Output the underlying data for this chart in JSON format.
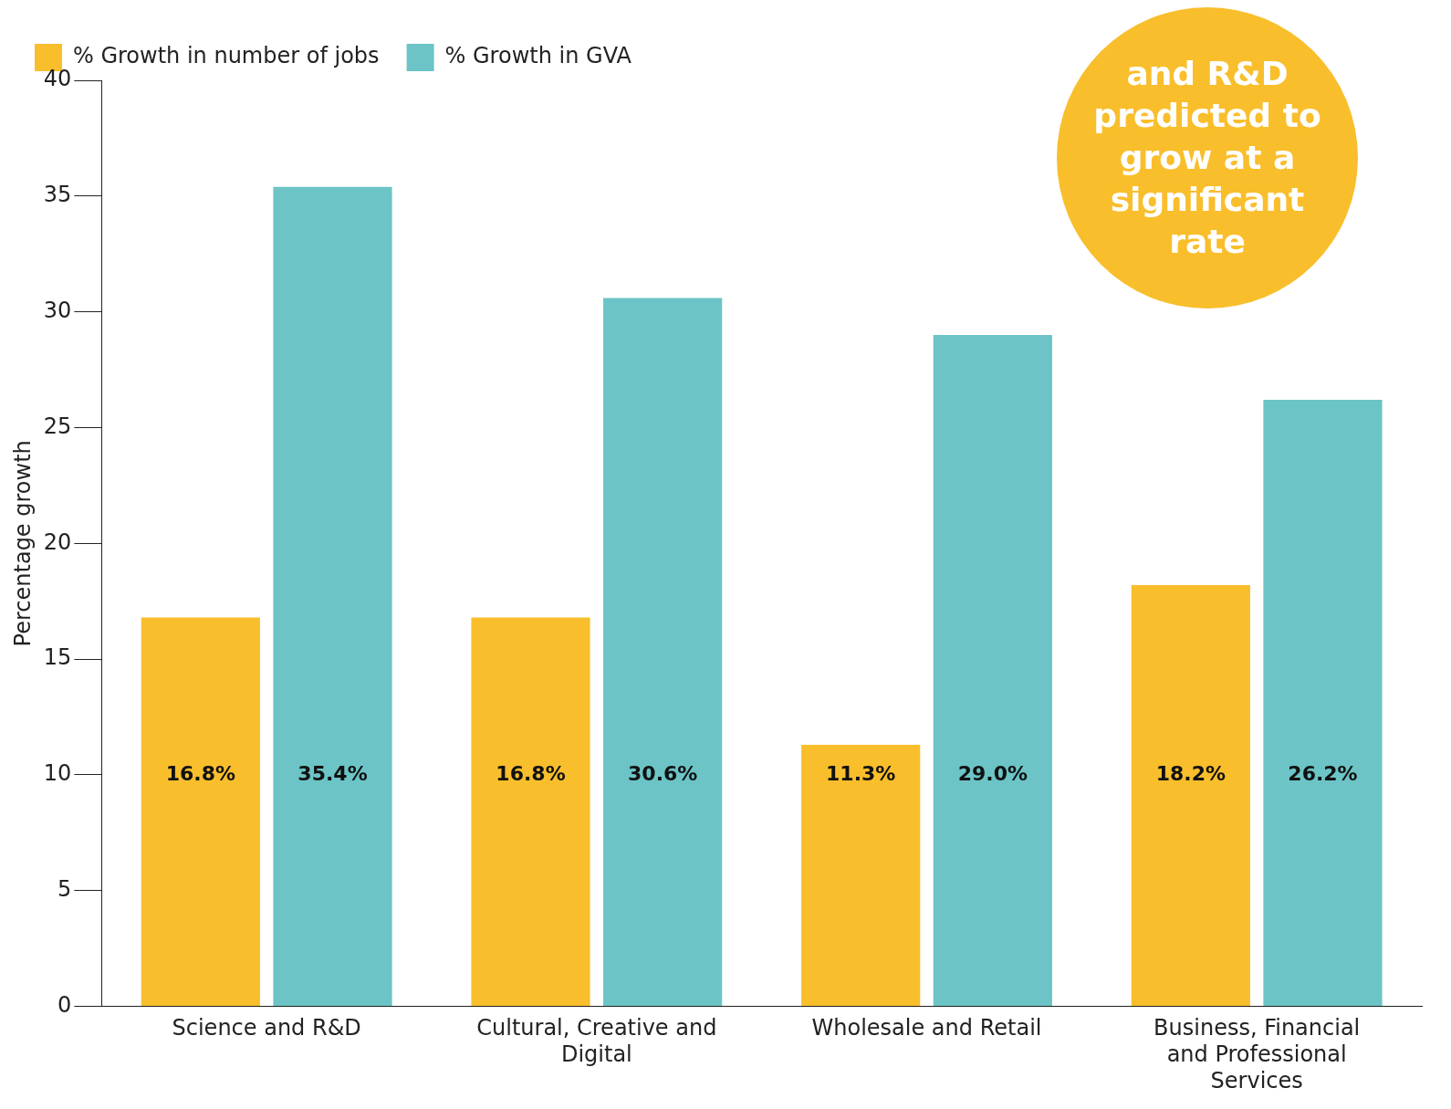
{
  "chart_data": {
    "type": "bar",
    "ylabel": "Percentage growth",
    "categories": [
      "Science and R&D",
      "Cultural, Creative and Digital",
      "Wholesale and Retail",
      "Business, Financial and Professional Services"
    ],
    "series": [
      {
        "name": "% Growth in number of jobs",
        "color": "#f9be2c",
        "values": [
          16.8,
          16.8,
          11.3,
          18.2
        ],
        "value_labels": [
          "16.8%",
          "16.8%",
          "11.3%",
          "18.2%"
        ]
      },
      {
        "name": "% Growth in GVA",
        "color": "#6cc4c6",
        "values": [
          35.4,
          30.6,
          29.0,
          26.2
        ],
        "value_labels": [
          "35.4%",
          "30.6%",
          "29.0%",
          "26.2%"
        ]
      }
    ],
    "ylim": [
      0,
      40
    ],
    "yticks": [
      0,
      5,
      10,
      15,
      20,
      25,
      30,
      35,
      40
    ],
    "grid": false,
    "legend": "top left",
    "annotations": [
      "and R&D predicted to grow at a significant rate"
    ]
  }
}
